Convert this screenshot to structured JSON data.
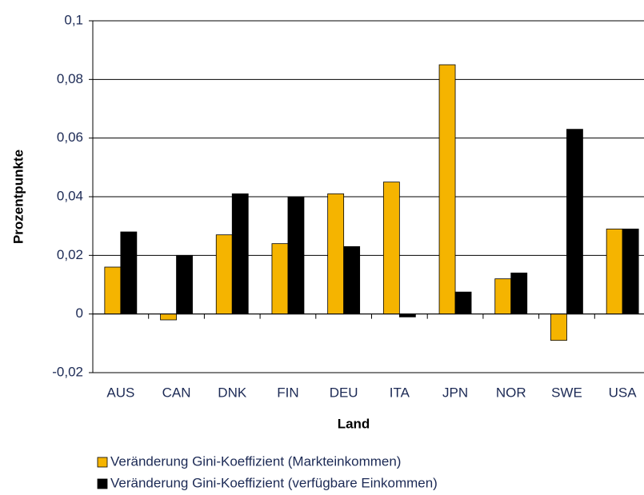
{
  "chart_data": {
    "type": "bar",
    "x_label": "Land",
    "y_label": "Prozentpunkte",
    "categories": [
      "AUS",
      "CAN",
      "DNK",
      "FIN",
      "DEU",
      "ITA",
      "JPN",
      "NOR",
      "SWE",
      "USA"
    ],
    "series": [
      {
        "name": "Veränderung Gini-Koeffizient (Markteinkommen)",
        "color": "#f5b400",
        "values": [
          0.016,
          -0.002,
          0.027,
          0.024,
          0.041,
          0.045,
          0.085,
          0.012,
          -0.009,
          0.029
        ]
      },
      {
        "name": "Veränderung Gini-Koeffizient (verfügbare Einkommen)",
        "color": "#000000",
        "values": [
          0.028,
          0.02,
          0.041,
          0.04,
          0.023,
          -0.001,
          0.0075,
          0.014,
          0.063,
          0.029
        ]
      }
    ],
    "ylim": [
      -0.02,
      0.1
    ],
    "yticks": [
      {
        "value": -0.02,
        "label": "-0,02"
      },
      0,
      {
        "value": 0.02,
        "label": "0,02"
      },
      {
        "value": 0.04,
        "label": "0,04"
      },
      {
        "value": 0.06,
        "label": "0,06"
      },
      {
        "value": 0.08,
        "label": "0,08"
      },
      {
        "value": 0.1,
        "label": "0,1"
      }
    ],
    "grid": true,
    "legend": "bottom"
  }
}
